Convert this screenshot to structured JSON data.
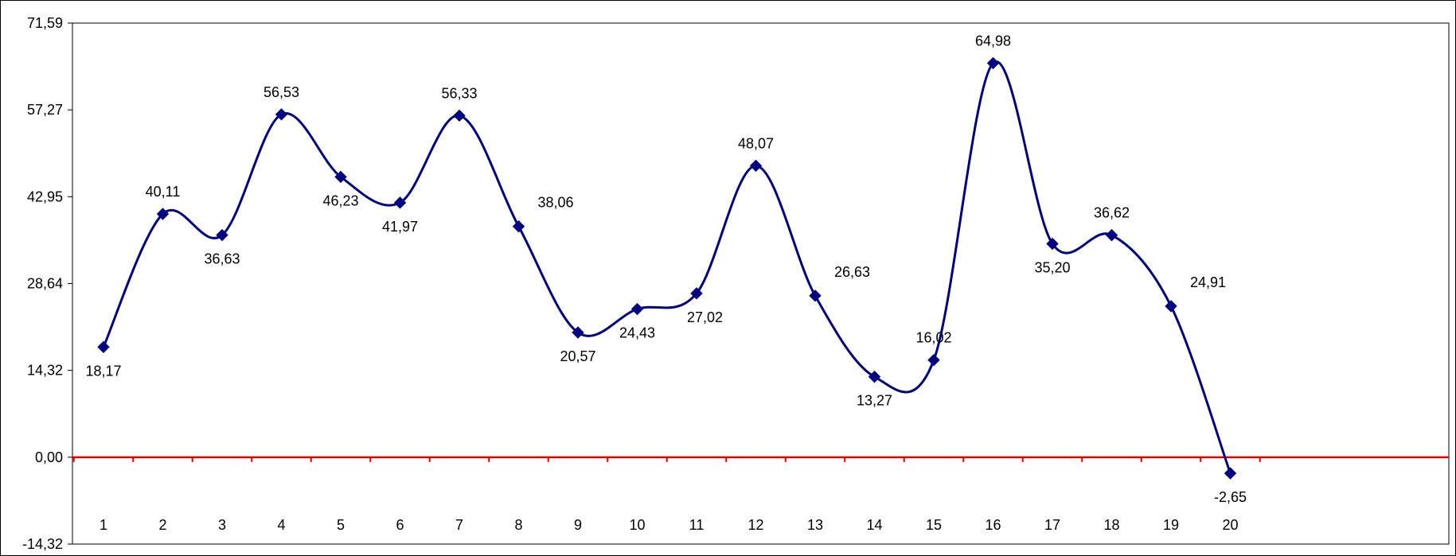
{
  "chart_data": {
    "type": "line",
    "title": "",
    "xlabel": "",
    "ylabel": "",
    "categories": [
      "1",
      "2",
      "3",
      "4",
      "5",
      "6",
      "7",
      "8",
      "9",
      "10",
      "11",
      "12",
      "13",
      "14",
      "15",
      "16",
      "17",
      "18",
      "19",
      "20"
    ],
    "series": [
      {
        "values": [
          18.17,
          40.11,
          36.63,
          56.53,
          46.23,
          41.97,
          56.33,
          38.06,
          20.57,
          24.43,
          27.02,
          48.07,
          26.63,
          13.27,
          16.02,
          64.98,
          35.2,
          36.62,
          24.91,
          -2.65
        ],
        "labels": [
          "18,17",
          "40,11",
          "36,63",
          "56,53",
          "46,23",
          "41,97",
          "56,33",
          "38,06",
          "20,57",
          "24,43",
          "27,02",
          "48,07",
          "26,63",
          "13,27",
          "16,02",
          "64,98",
          "35,20",
          "36,62",
          "24,91",
          "-2,65"
        ],
        "color": "#000080",
        "marker": "diamond",
        "smooth": true
      }
    ],
    "ylim": [
      -14.32,
      71.59
    ],
    "yticks": [
      71.59,
      57.27,
      42.95,
      28.64,
      14.32,
      0.0,
      -14.32
    ],
    "ytick_labels": [
      "71,59",
      "57,27",
      "42,95",
      "28,64",
      "14,32",
      "0,00",
      "-14,32"
    ],
    "grid": false,
    "legend": "none",
    "zero_line_color": "#e60000",
    "axis_color": "#000000"
  }
}
